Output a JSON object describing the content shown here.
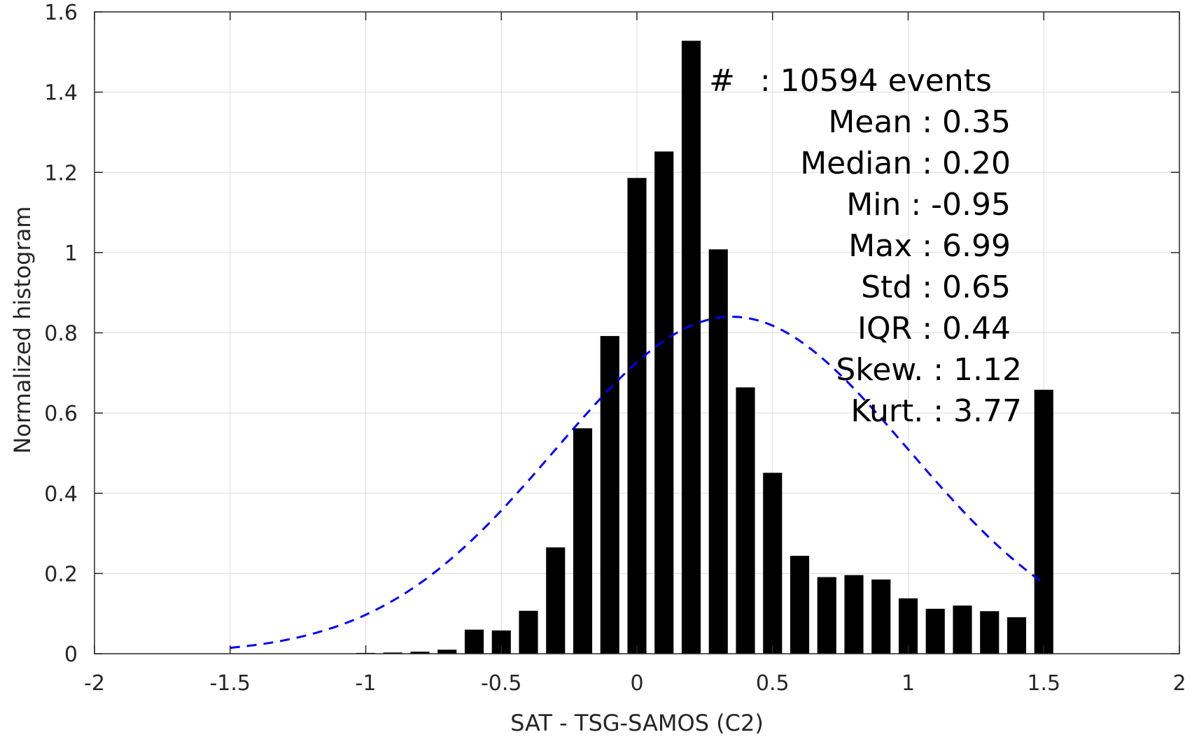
{
  "chart_data": {
    "type": "bar",
    "xlabel": "SAT - TSG-SAMOS (C2)",
    "ylabel": "Normalized histogram",
    "xlim": [
      -2,
      2
    ],
    "ylim": [
      0,
      1.6
    ],
    "grid": true,
    "x_ticks": [
      {
        "value": -2,
        "label": "-2"
      },
      {
        "value": -1.5,
        "label": "-1.5"
      },
      {
        "value": -1,
        "label": "-1"
      },
      {
        "value": -0.5,
        "label": "-0.5"
      },
      {
        "value": 0,
        "label": "0"
      },
      {
        "value": 0.5,
        "label": "0.5"
      },
      {
        "value": 1,
        "label": "1"
      },
      {
        "value": 1.5,
        "label": "1.5"
      },
      {
        "value": 2,
        "label": "2"
      }
    ],
    "y_ticks": [
      {
        "value": 0,
        "label": "0"
      },
      {
        "value": 0.2,
        "label": "0.2"
      },
      {
        "value": 0.4,
        "label": "0.4"
      },
      {
        "value": 0.6,
        "label": "0.6"
      },
      {
        "value": 0.8,
        "label": "0.8"
      },
      {
        "value": 1,
        "label": "1"
      },
      {
        "value": 1.2,
        "label": "1.2"
      },
      {
        "value": 1.4,
        "label": "1.4"
      },
      {
        "value": 1.6,
        "label": "1.6"
      }
    ],
    "bar_width": 0.07,
    "bar_color": "#000000",
    "bars": {
      "x": [
        -1.0,
        -0.9,
        -0.8,
        -0.7,
        -0.6,
        -0.5,
        -0.4,
        -0.3,
        -0.2,
        -0.1,
        0.0,
        0.1,
        0.2,
        0.3,
        0.4,
        0.5,
        0.6,
        0.7,
        0.8,
        0.9,
        1.0,
        1.1,
        1.2,
        1.3,
        1.4,
        1.5
      ],
      "values": [
        0.002,
        0.003,
        0.005,
        0.01,
        0.06,
        0.058,
        0.107,
        0.265,
        0.562,
        0.792,
        1.186,
        1.252,
        1.528,
        1.008,
        0.664,
        0.451,
        0.244,
        0.191,
        0.196,
        0.185,
        0.138,
        0.112,
        0.12,
        0.106,
        0.091,
        0.658
      ]
    },
    "fit_curve": {
      "name": "normal fit",
      "style": "dashed",
      "color": "#0000ff",
      "mean": 0.35,
      "std": 0.65,
      "amplitude": 0.84,
      "x_range": [
        -1.5,
        1.5
      ]
    },
    "annotations": [
      {
        "label": "#",
        "value": ": 10594 events"
      },
      {
        "label": "Mean",
        "value": ": 0.35"
      },
      {
        "label": "Median",
        "value": ": 0.20"
      },
      {
        "label": "Min",
        "value": ": -0.95"
      },
      {
        "label": "Max",
        "value": ": 6.99"
      },
      {
        "label": "Std",
        "value": ": 0.65"
      },
      {
        "label": "IQR",
        "value": ": 0.44"
      },
      {
        "label": "Skew.",
        "value": ": 1.12"
      },
      {
        "label": "Kurt.",
        "value": ": 3.77"
      }
    ]
  }
}
